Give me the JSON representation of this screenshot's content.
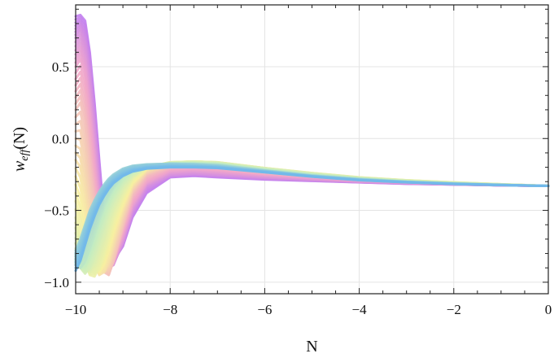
{
  "chart_data": {
    "type": "line",
    "title": "",
    "xlabel": "N",
    "ylabel": {
      "main": "w",
      "sub": "eff",
      "suffix": "(N)"
    },
    "xlim": [
      -10,
      0
    ],
    "ylim": [
      -1.08,
      0.93
    ],
    "x_ticks": [
      {
        "value": -10,
        "label": "−10"
      },
      {
        "value": -8,
        "label": "−8"
      },
      {
        "value": -6,
        "label": "−6"
      },
      {
        "value": -4,
        "label": "−4"
      },
      {
        "value": -2,
        "label": "−2"
      },
      {
        "value": 0,
        "label": "0"
      }
    ],
    "y_ticks": [
      {
        "value": 0.5,
        "label": "0.5"
      },
      {
        "value": 0.0,
        "label": "0.0"
      },
      {
        "value": -0.5,
        "label": "−0.5"
      },
      {
        "value": -1.0,
        "label": "−1.0"
      }
    ],
    "grid": true,
    "legend": "none",
    "colors": {
      "purple": "#c27ff0",
      "pink": "#f2a9c8",
      "yellow": "#f7f0a0",
      "green": "#c3ecc2",
      "blue": "#72b9ea"
    },
    "series": [
      {
        "x": [
          -10,
          -9.9,
          -9.8,
          -9.7,
          -9.6,
          -9.5,
          -9.4,
          -9.3,
          -9.2,
          -9.0,
          -8.8,
          -8.5,
          -8.0,
          -7.5,
          -7.0,
          -6.0,
          -5.0,
          -4.0,
          -3.0,
          -2.0,
          -1.0,
          0
        ],
        "y": [
          0.85,
          0.86,
          0.82,
          0.6,
          0.25,
          -0.15,
          -0.55,
          -0.82,
          -0.85,
          -0.75,
          -0.55,
          -0.38,
          -0.27,
          -0.26,
          -0.27,
          -0.285,
          -0.295,
          -0.305,
          -0.315,
          -0.32,
          -0.325,
          -0.33
        ]
      },
      {
        "x": [
          -10,
          -9.9,
          -9.8,
          -9.7,
          -9.6,
          -9.5,
          -9.4,
          -9.3,
          -9.2,
          -9.0,
          -8.8,
          -8.5,
          -8.0,
          -7.5,
          -7.0,
          -6.0,
          -5.0,
          -4.0,
          -3.0,
          -2.0,
          -1.0,
          0
        ],
        "y": [
          0.7,
          0.75,
          0.65,
          0.4,
          0.05,
          -0.35,
          -0.7,
          -0.9,
          -0.88,
          -0.72,
          -0.5,
          -0.33,
          -0.25,
          -0.24,
          -0.25,
          -0.27,
          -0.285,
          -0.3,
          -0.31,
          -0.318,
          -0.325,
          -0.33
        ]
      },
      {
        "x": [
          -10,
          -9.9,
          -9.8,
          -9.7,
          -9.6,
          -9.5,
          -9.4,
          -9.3,
          -9.2,
          -9.0,
          -8.8,
          -8.5,
          -8.0,
          -7.5,
          -7.0,
          -6.0,
          -5.0,
          -4.0,
          -3.0,
          -2.0,
          -1.0,
          0
        ],
        "y": [
          0.5,
          0.55,
          0.45,
          0.15,
          -0.2,
          -0.55,
          -0.82,
          -0.93,
          -0.86,
          -0.66,
          -0.45,
          -0.3,
          -0.22,
          -0.21,
          -0.22,
          -0.25,
          -0.27,
          -0.29,
          -0.305,
          -0.315,
          -0.322,
          -0.33
        ]
      },
      {
        "x": [
          -10,
          -9.9,
          -9.8,
          -9.7,
          -9.6,
          -9.5,
          -9.4,
          -9.3,
          -9.2,
          -9.0,
          -8.8,
          -8.5,
          -8.0,
          -7.5,
          -7.0,
          -6.0,
          -5.0,
          -4.0,
          -3.0,
          -2.0,
          -1.0,
          0
        ],
        "y": [
          0.2,
          0.25,
          0.1,
          -0.2,
          -0.5,
          -0.78,
          -0.93,
          -0.95,
          -0.85,
          -0.6,
          -0.38,
          -0.25,
          -0.19,
          -0.18,
          -0.19,
          -0.23,
          -0.26,
          -0.28,
          -0.3,
          -0.31,
          -0.32,
          -0.33
        ]
      },
      {
        "x": [
          -10,
          -9.9,
          -9.8,
          -9.7,
          -9.6,
          -9.5,
          -9.4,
          -9.3,
          -9.2,
          -9.0,
          -8.8,
          -8.5,
          -8.0,
          -7.5,
          -7.0,
          -6.0,
          -5.0,
          -4.0,
          -3.0,
          -2.0,
          -1.0,
          0
        ],
        "y": [
          -0.15,
          -0.2,
          -0.4,
          -0.65,
          -0.85,
          -0.95,
          -0.93,
          -0.85,
          -0.72,
          -0.5,
          -0.33,
          -0.22,
          -0.17,
          -0.16,
          -0.17,
          -0.21,
          -0.245,
          -0.275,
          -0.295,
          -0.31,
          -0.32,
          -0.33
        ]
      },
      {
        "x": [
          -10,
          -9.9,
          -9.8,
          -9.7,
          -9.6,
          -9.5,
          -9.4,
          -9.3,
          -9.2,
          -9.0,
          -8.8,
          -8.5,
          -8.0,
          -7.5,
          -7.0,
          -6.0,
          -5.0,
          -4.0,
          -3.0,
          -2.0,
          -1.0,
          0
        ],
        "y": [
          -0.55,
          -0.7,
          -0.86,
          -0.95,
          -0.96,
          -0.9,
          -0.8,
          -0.68,
          -0.56,
          -0.4,
          -0.28,
          -0.2,
          -0.165,
          -0.16,
          -0.165,
          -0.205,
          -0.24,
          -0.27,
          -0.29,
          -0.305,
          -0.318,
          -0.33
        ]
      },
      {
        "x": [
          -10,
          -9.9,
          -9.8,
          -9.7,
          -9.6,
          -9.5,
          -9.4,
          -9.3,
          -9.2,
          -9.0,
          -8.8,
          -8.5,
          -8.0,
          -7.5,
          -7.0,
          -6.0,
          -5.0,
          -4.0,
          -3.0,
          -2.0,
          -1.0,
          0
        ],
        "y": [
          -0.8,
          -0.9,
          -0.94,
          -0.9,
          -0.82,
          -0.72,
          -0.62,
          -0.52,
          -0.44,
          -0.32,
          -0.25,
          -0.2,
          -0.17,
          -0.165,
          -0.17,
          -0.21,
          -0.245,
          -0.275,
          -0.295,
          -0.31,
          -0.32,
          -0.33
        ]
      },
      {
        "x": [
          -10,
          -9.9,
          -9.8,
          -9.7,
          -9.6,
          -9.5,
          -9.4,
          -9.3,
          -9.2,
          -9.0,
          -8.8,
          -8.5,
          -8.0,
          -7.5,
          -7.0,
          -6.0,
          -5.0,
          -4.0,
          -3.0,
          -2.0,
          -1.0,
          0
        ],
        "y": [
          -0.88,
          -0.9,
          -0.85,
          -0.76,
          -0.66,
          -0.56,
          -0.47,
          -0.4,
          -0.34,
          -0.26,
          -0.22,
          -0.19,
          -0.175,
          -0.175,
          -0.18,
          -0.22,
          -0.255,
          -0.28,
          -0.3,
          -0.312,
          -0.322,
          -0.33
        ]
      },
      {
        "x": [
          -10,
          -9.9,
          -9.8,
          -9.7,
          -9.6,
          -9.5,
          -9.4,
          -9.3,
          -9.2,
          -9.0,
          -8.8,
          -8.5,
          -8.0,
          -7.5,
          -7.0,
          -6.0,
          -5.0,
          -4.0,
          -3.0,
          -2.0,
          -1.0,
          0
        ],
        "y": [
          -0.78,
          -0.7,
          -0.6,
          -0.5,
          -0.43,
          -0.37,
          -0.32,
          -0.28,
          -0.25,
          -0.21,
          -0.19,
          -0.18,
          -0.175,
          -0.18,
          -0.19,
          -0.225,
          -0.26,
          -0.285,
          -0.302,
          -0.315,
          -0.323,
          -0.33
        ]
      },
      {
        "x": [
          -10,
          -9.9,
          -9.8,
          -9.7,
          -9.6,
          -9.5,
          -9.4,
          -9.3,
          -9.2,
          -9.0,
          -8.8,
          -8.5,
          -8.0,
          -7.5,
          -7.0,
          -6.0,
          -5.0,
          -4.0,
          -3.0,
          -2.0,
          -1.0,
          0
        ],
        "y": [
          -0.92,
          -0.85,
          -0.74,
          -0.63,
          -0.54,
          -0.46,
          -0.4,
          -0.35,
          -0.31,
          -0.26,
          -0.23,
          -0.21,
          -0.2,
          -0.2,
          -0.205,
          -0.235,
          -0.265,
          -0.29,
          -0.305,
          -0.316,
          -0.324,
          -0.33
        ]
      }
    ]
  }
}
